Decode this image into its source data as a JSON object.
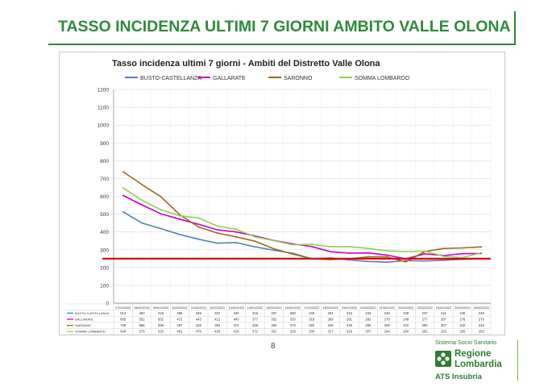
{
  "slide": {
    "title": "TASSO INCIDENZA ULTIMI 7 GIORNI AMBITO VALLE OLONA",
    "page_number": "8"
  },
  "logo": {
    "tagline": "Sistema Socio Sanitario",
    "region_line1": "Regione",
    "region_line2": "Lombardia",
    "agency": "ATS Insubria"
  },
  "colors": {
    "title_green": "#2e8b3a",
    "threshold_red": "#e00000",
    "busto": "#4f81bd",
    "gallarate": "#cc00cc",
    "saronno": "#9c6a1c",
    "somma": "#92d050"
  },
  "chart_data": {
    "type": "line",
    "title": "Tasso incidenza ultimi 7 giorni - Ambiti del Distretto Valle Olona",
    "ylim": [
      0,
      1200
    ],
    "yticks": [
      0,
      100,
      200,
      300,
      400,
      500,
      600,
      700,
      800,
      900,
      1000,
      1100,
      1200
    ],
    "grid": true,
    "legend_position": "top",
    "reference_line": {
      "value": 250,
      "color": "#e00000"
    },
    "categories": [
      "07/02/2022",
      "08/02/2022",
      "09/02/2022",
      "10/02/2022",
      "11/02/2022",
      "12/02/2022",
      "13/02/2022",
      "14/02/2022",
      "15/02/2022",
      "16/02/2022",
      "17/02/2022",
      "18/02/2022",
      "19/02/2022",
      "20/02/2022",
      "21/02/2022",
      "22/02/2022",
      "23/02/2022",
      "24/02/2022",
      "25/02/2022",
      "26/02/2022"
    ],
    "series": [
      {
        "name": "BUSTO-CASTELLANZA",
        "color": "#4f81bd",
        "values": [
          513,
          450,
          419,
          386,
          359,
          337,
          340,
          316,
          297,
          280,
          249,
          254,
          243,
          234,
          230,
          239,
          237,
          241,
          246,
          249
        ]
      },
      {
        "name": "GALLARATE",
        "color": "#cc00cc",
        "values": [
          605,
          552,
          502,
          472,
          443,
          412,
          400,
          377,
          352,
          333,
          318,
          289,
          281,
          282,
          270,
          249,
          277,
          267,
          278,
          279
        ]
      },
      {
        "name": "SARONNO",
        "color": "#9c6a1c",
        "values": [
          738,
          666,
          598,
          497,
          428,
          394,
          372,
          348,
          305,
          276,
          250,
          245,
          249,
          260,
          260,
          232,
          290,
          307,
          310,
          316
        ]
      },
      {
        "name": "SOMMA LOMBARDO",
        "color": "#92d050",
        "values": [
          648,
          578,
          525,
          491,
          478,
          433,
          415,
          372,
          351,
          328,
          330,
          317,
          318,
          307,
          294,
          290,
          292,
          263,
          256,
          283
        ]
      }
    ],
    "table": {
      "header_cells": [
        "07/02/2022",
        "08/02/2022",
        "09/02/2022",
        "10/02/2022",
        "11/02/2022",
        "12/02/2022",
        "13/02/2022",
        "14/02/2022",
        "15/02/2022",
        "16/02/2022",
        "17/02/2022",
        "18/02/2022",
        "19/02/2022",
        "20/02/2022",
        "21/02/2022",
        "22/02/2022",
        "23/02/2022",
        "24/02/2022",
        "25/02/2022",
        "26/02/2022"
      ],
      "rows": [
        {
          "label": "BUSTO-CASTELLANZA",
          "cells": [
            "513",
            "450",
            "419",
            "386",
            "359",
            "337",
            "340",
            "316",
            "297",
            "280",
            "249",
            "254",
            "243",
            "234",
            "230",
            "239",
            "237",
            "241",
            "246",
            "249"
          ]
        },
        {
          "label": "GALLARATE",
          "cells": [
            "605",
            "552",
            "502",
            "472",
            "443",
            "412",
            "400",
            "377",
            "352",
            "333",
            "318",
            "289",
            "281",
            "282",
            "270",
            "249",
            "277",
            "267",
            "278",
            "279"
          ]
        },
        {
          "label": "SARONNO",
          "cells": [
            "738",
            "666",
            "598",
            "497",
            "428",
            "394",
            "372",
            "348",
            "305",
            "276",
            "250",
            "245",
            "249",
            "260",
            "260",
            "232",
            "290",
            "307",
            "310",
            "316"
          ]
        },
        {
          "label": "SOMMA LOMBARDO",
          "cells": [
            "648",
            "578",
            "525",
            "491",
            "478",
            "433",
            "415",
            "372",
            "351",
            "328",
            "330",
            "317",
            "318",
            "307",
            "294",
            "290",
            "292",
            "263",
            "256",
            "283"
          ]
        }
      ]
    }
  }
}
